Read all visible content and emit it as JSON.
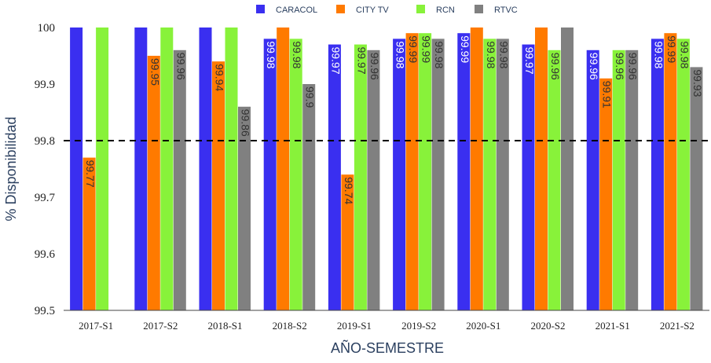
{
  "chart_data": {
    "type": "bar",
    "xlabel": "AÑO-SEMESTRE",
    "ylabel": "% Disponibilidad",
    "ylim": [
      99.5,
      100
    ],
    "yticks": [
      99.5,
      99.6,
      99.7,
      99.8,
      99.9,
      100
    ],
    "ytick_labels": [
      "99.5",
      "99.6",
      "99.7",
      "99.8",
      "99.9",
      "100"
    ],
    "reference_line": 99.8,
    "legend_position": "top-center",
    "categories": [
      "2017-S1",
      "2017-S2",
      "2018-S1",
      "2018-S2",
      "2019-S1",
      "2019-S2",
      "2020-S1",
      "2020-S2",
      "2021-S1",
      "2021-S2"
    ],
    "series": [
      {
        "name": "CARACOL",
        "color": "#3a2ff0",
        "values": [
          100,
          100,
          100,
          99.98,
          99.97,
          99.98,
          99.99,
          99.97,
          99.96,
          99.98
        ],
        "labels": [
          "",
          "",
          "",
          "99.98",
          "99.97",
          "99.98",
          "99.99",
          "99.97",
          "99.96",
          "99.98"
        ]
      },
      {
        "name": "CITY TV",
        "color": "#ff7a00",
        "values": [
          99.77,
          99.95,
          99.94,
          100,
          99.74,
          99.99,
          100,
          100,
          99.91,
          99.99
        ],
        "labels": [
          "99.77",
          "99.95",
          "99.94",
          "",
          "99.74",
          "99.99",
          "",
          "",
          "99.91",
          "99.99"
        ]
      },
      {
        "name": "RCN",
        "color": "#88f23a",
        "values": [
          100,
          100,
          100,
          99.98,
          99.97,
          99.99,
          99.98,
          99.96,
          99.96,
          99.98
        ],
        "labels": [
          "",
          "",
          "",
          "99.98",
          "99.97",
          "99.99",
          "99.98",
          "99.96",
          "99.96",
          "99.98"
        ]
      },
      {
        "name": "RTVC",
        "color": "#808080",
        "values": [
          null,
          99.96,
          99.86,
          99.9,
          99.96,
          99.98,
          99.98,
          100,
          99.96,
          99.93
        ],
        "labels": [
          "",
          "99.96",
          "99.86",
          "99.9",
          "99.96",
          "99.98",
          "99.98",
          "",
          "99.96",
          "99.93"
        ]
      }
    ]
  }
}
